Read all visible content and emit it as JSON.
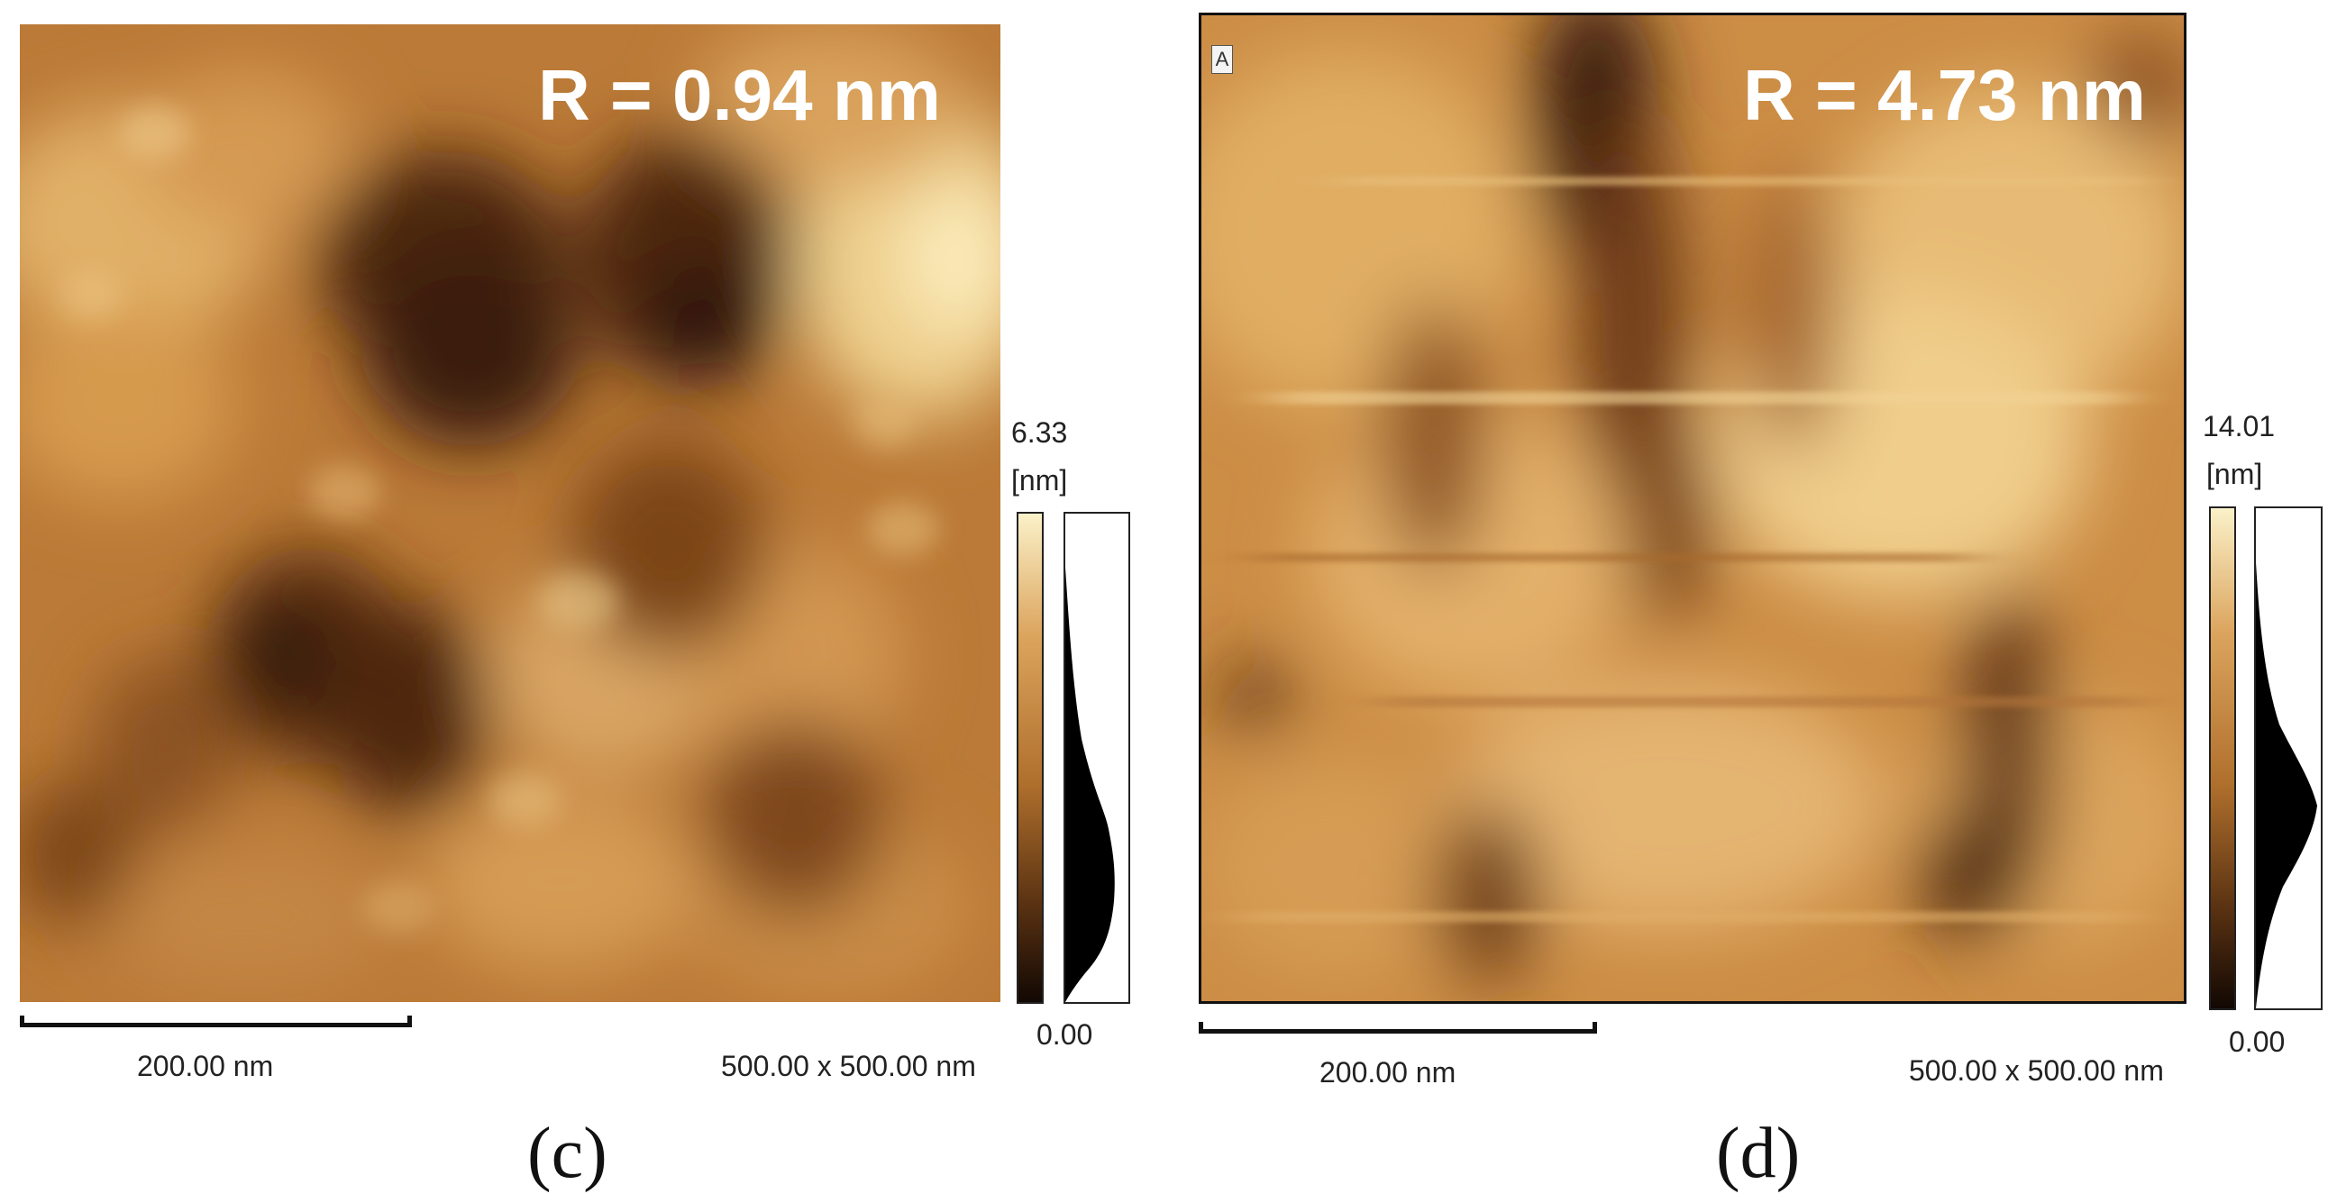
{
  "panels": [
    {
      "letter": "(c)",
      "roughness_label": "R = 0.94 nm",
      "colorbar": {
        "max": "6.33",
        "unit": "[nm]",
        "min": "0.00"
      },
      "scale_bar_label": "200.00 nm",
      "scan_size": "500.00 x 500.00 nm"
    },
    {
      "letter": "(d)",
      "image_tag": "A",
      "roughness_label": "R = 4.73 nm",
      "colorbar": {
        "max": "14.01",
        "unit": "[nm]",
        "min": "0.00"
      },
      "scale_bar_label": "200.00 nm",
      "scan_size": "500.00 x 500.00 nm"
    }
  ],
  "colors": {
    "afm_dark": "#1f1006",
    "afm_mid": "#b0702d",
    "afm_light": "#f5e6b4",
    "text_overlay": "#ffffff"
  }
}
